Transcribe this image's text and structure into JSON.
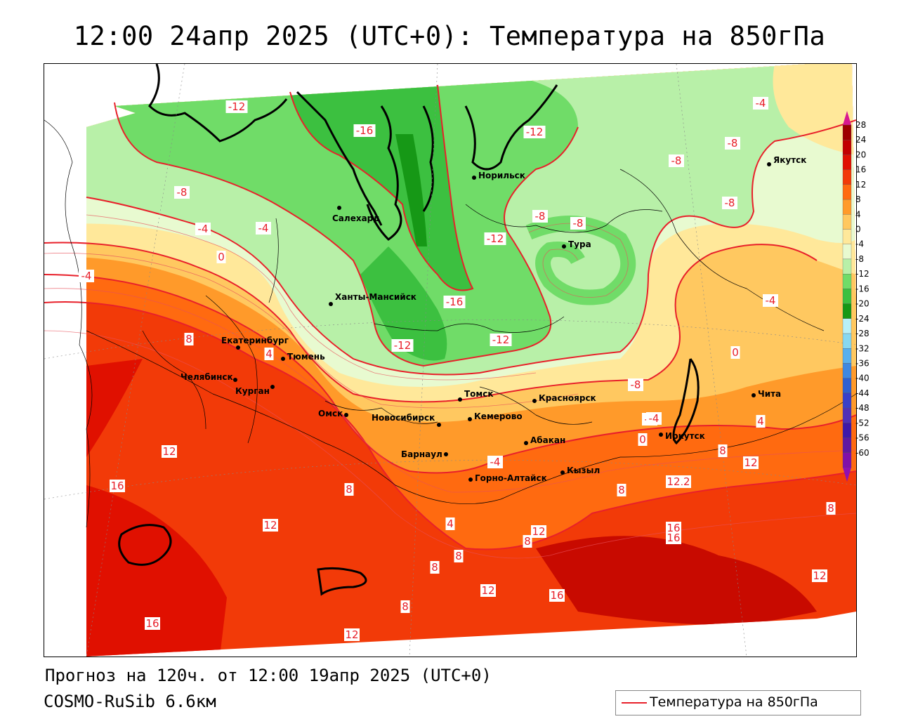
{
  "header": {
    "title": "12:00 24апр 2025 (UTC+0): Температура на 850гПа"
  },
  "footer": {
    "forecast": "Прогноз на 120ч. от 12:00 19апр 2025 (UTC+0)",
    "model": "COSMO-RuSib 6.6км"
  },
  "legend": {
    "label": "Температура на 850гПа",
    "color": "#e8202a"
  },
  "colorbar": {
    "ticks": [
      "28",
      "24",
      "20",
      "16",
      "12",
      "8",
      "4",
      "0",
      "-4",
      "-8",
      "-12",
      "-16",
      "-20",
      "-24",
      "-28",
      "-32",
      "-36",
      "-40",
      "-44",
      "-48",
      "-52",
      "-56",
      "-60"
    ],
    "colors": [
      "#9e0000",
      "#c20000",
      "#e01000",
      "#f23a08",
      "#ff6a10",
      "#ff9a2a",
      "#ffc860",
      "#ffe89a",
      "#e8fad0",
      "#b8f0a8",
      "#70dc68",
      "#3cc040",
      "#169816",
      "#b8f0f8",
      "#88d8f0",
      "#58b0ee",
      "#4088e0",
      "#3060d0",
      "#3a40c8",
      "#5030b8",
      "#4018a8",
      "#6018a0",
      "#8010a8"
    ]
  },
  "cities": [
    {
      "name": "Салехард"
    },
    {
      "name": "Норильск"
    },
    {
      "name": "Якутск"
    },
    {
      "name": "Тура"
    },
    {
      "name": "Ханты-Мансийск"
    },
    {
      "name": "Екатеринбург"
    },
    {
      "name": "Тюмень"
    },
    {
      "name": "Челябинск"
    },
    {
      "name": "Курган"
    },
    {
      "name": "Омск"
    },
    {
      "name": "Новосибирск"
    },
    {
      "name": "Томск"
    },
    {
      "name": "Кемерово"
    },
    {
      "name": "Красноярск"
    },
    {
      "name": "Барнаул"
    },
    {
      "name": "Абакан"
    },
    {
      "name": "Горно-Алтайск"
    },
    {
      "name": "Кызыл"
    },
    {
      "name": "Иркутск"
    },
    {
      "name": "Чита"
    }
  ],
  "isotherm_labels": [
    "-12",
    "-16",
    "-12",
    "-8",
    "-8",
    "-4",
    "-8",
    "-8",
    "-4",
    "-8",
    "-8",
    "-12",
    "-4",
    "0",
    "-16",
    "-12",
    "-12",
    "-8",
    "8",
    "4",
    "0",
    "-4",
    "4",
    "8",
    "12",
    "16",
    "12",
    "8",
    "12",
    "8",
    "16",
    "16",
    "12",
    "8",
    "8",
    "12",
    "16",
    "12",
    "8",
    "16",
    "12",
    "8",
    "-4",
    "-4",
    "0",
    "4",
    "-4",
    "8",
    "12",
    "12",
    "-4"
  ]
}
